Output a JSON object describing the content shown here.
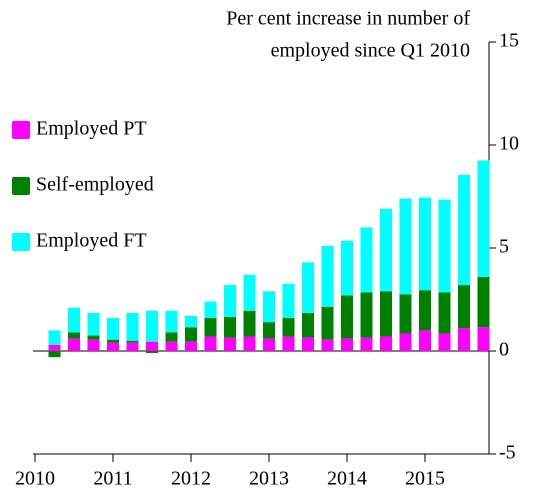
{
  "chart_data": {
    "type": "stacked_bar",
    "title": [
      "Per cent increase in number of",
      "employed since Q1 2010"
    ],
    "categories": [
      "2010",
      null,
      null,
      null,
      "2011",
      null,
      null,
      null,
      "2012",
      null,
      null,
      null,
      "2013",
      null,
      null,
      null,
      "2014",
      null,
      null,
      null,
      "2015",
      null,
      null,
      null
    ],
    "series": [
      {
        "name": "Employed PT",
        "color": "#ff00ff",
        "values": [
          0,
          0.3,
          0.6,
          0.55,
          0.4,
          0.4,
          0.45,
          0.45,
          0.45,
          0.7,
          0.65,
          0.7,
          0.6,
          0.7,
          0.65,
          0.55,
          0.6,
          0.65,
          0.7,
          0.85,
          1.0,
          0.85,
          1.1,
          1.15
        ]
      },
      {
        "name": "Self-employed",
        "color": "#008000",
        "values": [
          0,
          -0.3,
          0.3,
          0.2,
          0.15,
          0.1,
          -0.1,
          0.45,
          0.7,
          0.9,
          1.0,
          1.25,
          0.8,
          0.9,
          1.2,
          1.6,
          2.1,
          2.2,
          2.2,
          1.9,
          1.95,
          2.0,
          2.1,
          2.45
        ]
      },
      {
        "name": "Employed FT",
        "color": "#00ffff",
        "values": [
          0,
          0.7,
          1.2,
          1.1,
          1.05,
          1.35,
          1.5,
          1.05,
          0.55,
          0.8,
          1.55,
          1.75,
          1.5,
          1.65,
          2.45,
          2.95,
          2.65,
          3.15,
          4.0,
          4.65,
          4.5,
          4.5,
          5.35,
          5.65
        ]
      }
    ],
    "ylim": [
      -5,
      15
    ],
    "yticks": [
      -5,
      0,
      5,
      10,
      15
    ],
    "legend": "left"
  }
}
